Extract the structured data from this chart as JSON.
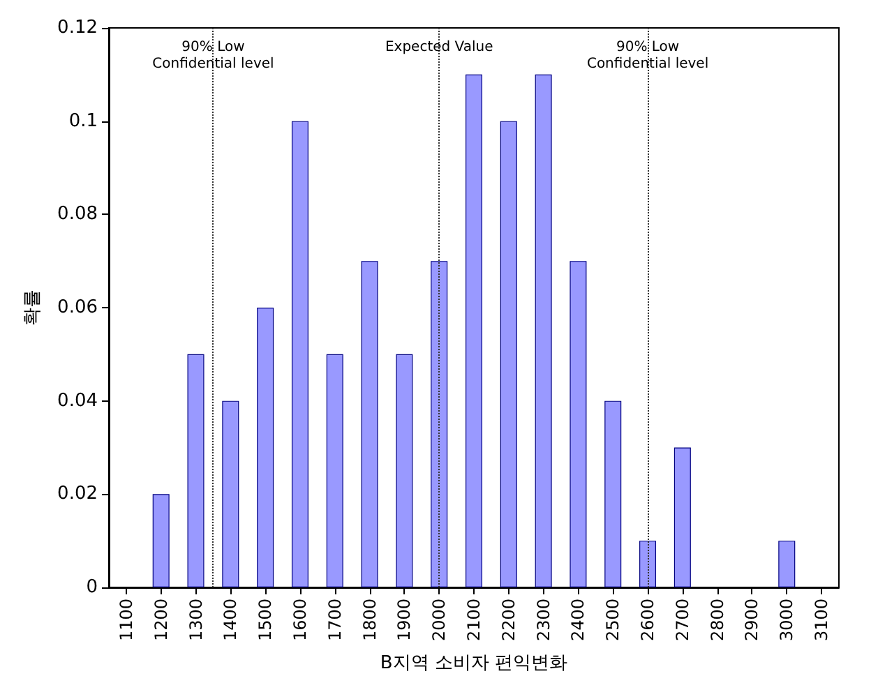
{
  "chart_data": {
    "type": "bar",
    "xlabel": "B지역 소비자 편익변화",
    "ylabel": "확률",
    "x": [
      1200,
      1300,
      1400,
      1500,
      1600,
      1700,
      1800,
      1900,
      2000,
      2100,
      2200,
      2300,
      2400,
      2500,
      2600,
      2700,
      3000
    ],
    "values": [
      0.02,
      0.05,
      0.04,
      0.06,
      0.1,
      0.05,
      0.07,
      0.05,
      0.07,
      0.11,
      0.1,
      0.11,
      0.07,
      0.04,
      0.01,
      0.03,
      0.01
    ],
    "color": "#9999ff",
    "xlim": [
      1050,
      3150
    ],
    "xticks": [
      1100,
      1200,
      1300,
      1400,
      1500,
      1600,
      1700,
      1800,
      1900,
      2000,
      2100,
      2200,
      2300,
      2400,
      2500,
      2600,
      2700,
      2800,
      2900,
      3000,
      3100
    ],
    "ylim": [
      0,
      0.12
    ],
    "yticks": [
      0,
      0.02,
      0.04,
      0.06,
      0.08,
      0.1,
      0.12
    ],
    "grid": false,
    "ref_lines": [
      {
        "axis": "x",
        "value": 1350,
        "label": "90% Low\nConfidential level",
        "color": "#333333",
        "line_style": "dotted"
      },
      {
        "axis": "x",
        "value": 2000,
        "label": "Expected Value",
        "color": "#333333",
        "line_style": "dotted"
      },
      {
        "axis": "x",
        "value": 2600,
        "label": "90% Low\nConfidential level",
        "color": "#333333",
        "line_style": "dotted"
      }
    ]
  }
}
